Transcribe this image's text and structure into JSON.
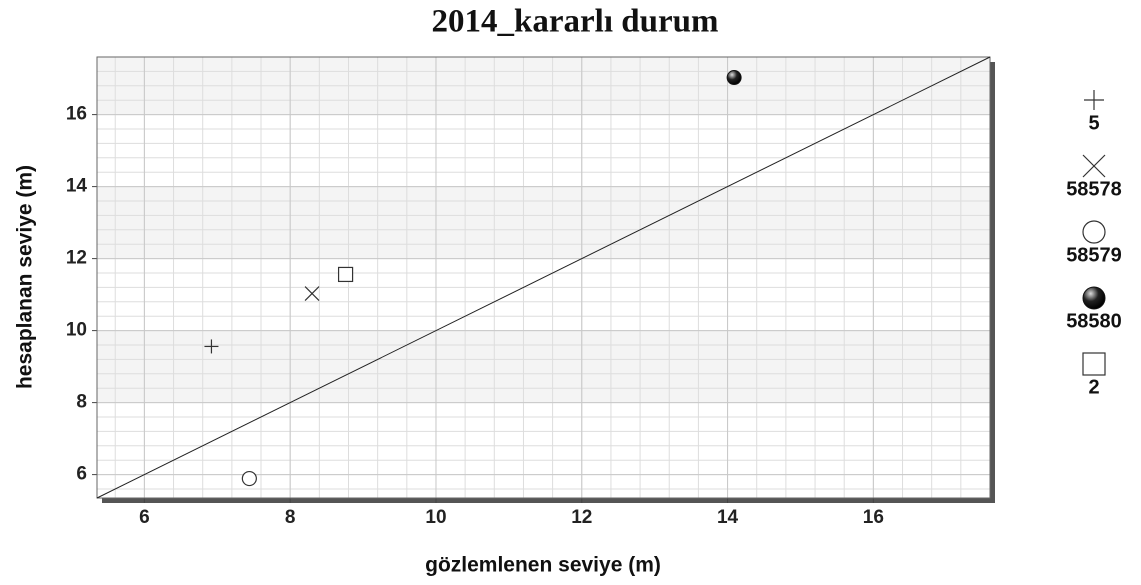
{
  "chart_data": {
    "type": "scatter",
    "title": "2014_kararlı durum",
    "x_label": "gözlemlenen seviye (m)",
    "y_label": "hesaplanan seviye (m)",
    "xlim": [
      5.35,
      17.6
    ],
    "ylim": [
      5.35,
      17.6
    ],
    "xticks": [
      6,
      8,
      10,
      12,
      14,
      16
    ],
    "yticks": [
      6,
      8,
      10,
      12,
      14,
      16
    ],
    "grid": true,
    "series": [
      {
        "name": "5",
        "marker": "plus",
        "color": "#333333",
        "x": [
          6.92
        ],
        "values": [
          9.56
        ]
      },
      {
        "name": "58578",
        "marker": "cross",
        "color": "#333333",
        "x": [
          8.3
        ],
        "values": [
          11.03
        ]
      },
      {
        "name": "58579",
        "marker": "circle",
        "color": "#333333",
        "x": [
          7.44
        ],
        "values": [
          5.89
        ]
      },
      {
        "name": "58580",
        "marker": "filled-circle",
        "color": "#111111",
        "x": [
          14.09
        ],
        "values": [
          17.03
        ]
      },
      {
        "name": "2",
        "marker": "square",
        "color": "#333333",
        "x": [
          8.76
        ],
        "values": [
          11.56
        ]
      }
    ]
  }
}
